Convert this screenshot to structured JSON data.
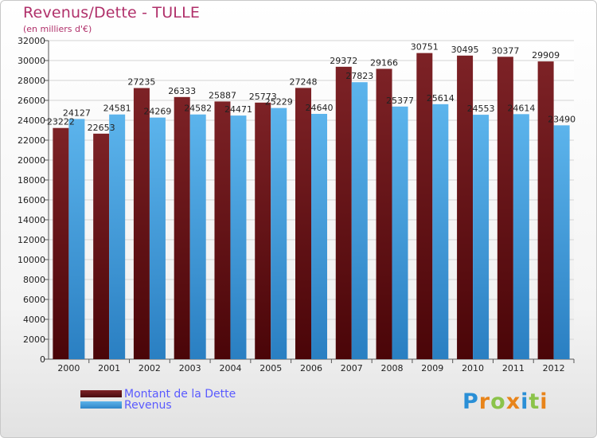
{
  "header": {
    "title": "Revenus/Dette - TULLE",
    "subtitle": "(en milliers d'€)"
  },
  "chart_data": {
    "type": "bar",
    "categories": [
      "2000",
      "2001",
      "2002",
      "2003",
      "2004",
      "2005",
      "2006",
      "2007",
      "2008",
      "2009",
      "2010",
      "2011",
      "2012"
    ],
    "series": [
      {
        "name": "Montant de la Dette",
        "color": "#6e1a1e",
        "values": [
          23222,
          22653,
          27235,
          26333,
          25887,
          25773,
          27248,
          29372,
          29166,
          30751,
          30495,
          30377,
          29909
        ]
      },
      {
        "name": "Revenus",
        "color": "#4aa3e0",
        "values": [
          24127,
          24581,
          24269,
          24582,
          24471,
          25229,
          24640,
          27823,
          25377,
          25614,
          24553,
          24614,
          23490
        ]
      }
    ],
    "ylim": [
      0,
      32000
    ],
    "yticks": [
      0,
      2000,
      4000,
      6000,
      8000,
      10000,
      12000,
      14000,
      16000,
      18000,
      20000,
      22000,
      24000,
      26000,
      28000,
      30000,
      32000
    ],
    "grid": true,
    "legend_position": "bottom-left"
  },
  "legend": {
    "items": [
      {
        "label": "Montant de la Dette",
        "color": "#6e1a1e"
      },
      {
        "label": "Revenus",
        "color": "#4aa3e0"
      }
    ]
  },
  "logo": {
    "letters": [
      {
        "ch": "P",
        "color": "#2a8fd6"
      },
      {
        "ch": "r",
        "color": "#e8841a"
      },
      {
        "ch": "o",
        "color": "#8bc34a"
      },
      {
        "ch": "x",
        "color": "#e8841a"
      },
      {
        "ch": "i",
        "color": "#2a8fd6"
      },
      {
        "ch": "t",
        "color": "#8bc34a"
      },
      {
        "ch": "i",
        "color": "#e8841a"
      }
    ]
  }
}
